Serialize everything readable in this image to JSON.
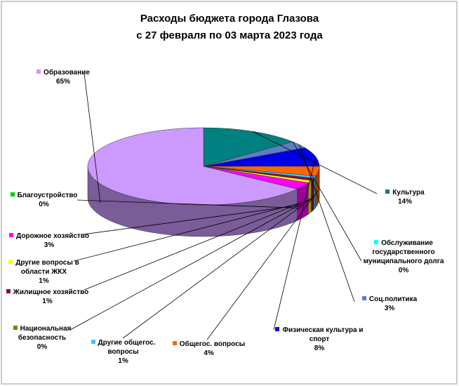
{
  "chart_data": {
    "type": "pie",
    "title": "Расходы бюджета города Глазова",
    "subtitle": "с 27 февраля по 03 марта 2023 года",
    "categories": [
      "Культура",
      "Обслуживание государственного муниципального долга",
      "Соц.политика",
      "Физическая культура и спорт",
      "Общегос. вопросы",
      "Другие общегос. вопросы",
      "Национальная безопасность",
      "Жилищное хозяйство",
      "Другие вопросы в области ЖКХ",
      "Дорожное хозяйство",
      "Благоустройство",
      "Образование"
    ],
    "values": [
      14,
      0,
      3,
      8,
      4,
      1,
      0,
      1,
      1,
      3,
      0,
      65
    ],
    "value_labels": [
      "14%",
      "0%",
      "3%",
      "8%",
      "4%",
      "1%",
      "0%",
      "1%",
      "1%",
      "3%",
      "0%",
      "65%"
    ],
    "colors": [
      "#008080",
      "#00ffff",
      "#5b7fc0",
      "#0000e6",
      "#ff6600",
      "#33ccff",
      "#808000",
      "#990033",
      "#ffff00",
      "#ff00ff",
      "#00cc00",
      "#cc99ff"
    ]
  }
}
